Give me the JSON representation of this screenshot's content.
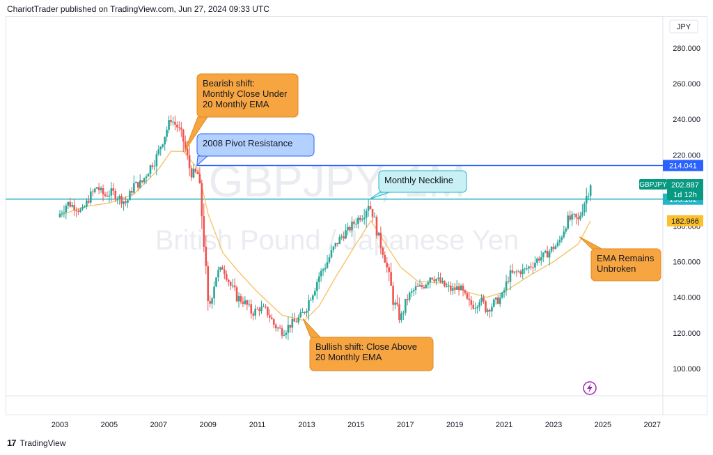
{
  "header": {
    "publisher_line": "ChariotTrader published on TradingView.com, Jun 27, 2024 09:33 UTC"
  },
  "footer": {
    "logo_text": "TradingView"
  },
  "colors": {
    "up": "#26a69a",
    "down": "#ef5350",
    "ema": "#f6c46b",
    "resistance": "#2962ff",
    "neckline": "#22b5c6",
    "callout_orange": "#f7a541",
    "callout_blue": "#b3d1ff",
    "callout_cyan": "#c8f0f5",
    "price_badge": "#089981",
    "ema_badge": "#fbc02d"
  },
  "chart_data": {
    "type": "candlestick",
    "symbol_watermark": "GBPJPY, 1M",
    "name_watermark": "British Pound / Japanese Yen",
    "currency_label": "JPY",
    "interval": "1M",
    "ylim": [
      88,
      295
    ],
    "xlim": [
      2001.5,
      2028.0
    ],
    "y_ticks": [
      "280.000",
      "260.000",
      "240.000",
      "220.000",
      "200.000",
      "180.000",
      "160.000",
      "140.000",
      "120.000",
      "100.000"
    ],
    "x_ticks": [
      "2003",
      "2005",
      "2007",
      "2009",
      "2011",
      "2013",
      "2015",
      "2017",
      "2019",
      "2021",
      "2023",
      "2025",
      "2027"
    ],
    "series": [
      {
        "name": "GBPJPY",
        "type": "candles",
        "points": [
          [
            2003.0,
            187
          ],
          [
            2003.3,
            193
          ],
          [
            2003.6,
            191
          ],
          [
            2003.9,
            188
          ],
          [
            2004.2,
            196
          ],
          [
            2004.5,
            202
          ],
          [
            2004.8,
            197
          ],
          [
            2005.1,
            199
          ],
          [
            2005.4,
            196
          ],
          [
            2005.7,
            193
          ],
          [
            2006.0,
            203
          ],
          [
            2006.3,
            204
          ],
          [
            2006.6,
            212
          ],
          [
            2006.9,
            218
          ],
          [
            2007.2,
            230
          ],
          [
            2007.5,
            240
          ],
          [
            2007.8,
            235
          ],
          [
            2008.0,
            228
          ],
          [
            2008.3,
            210
          ],
          [
            2008.6,
            209
          ],
          [
            2008.8,
            180
          ],
          [
            2009.0,
            131
          ],
          [
            2009.3,
            152
          ],
          [
            2009.6,
            157
          ],
          [
            2009.9,
            147
          ],
          [
            2010.2,
            140
          ],
          [
            2010.5,
            137
          ],
          [
            2010.8,
            131
          ],
          [
            2011.1,
            134
          ],
          [
            2011.4,
            132
          ],
          [
            2011.7,
            124
          ],
          [
            2012.0,
            121
          ],
          [
            2012.3,
            124
          ],
          [
            2012.6,
            127
          ],
          [
            2012.9,
            132
          ],
          [
            2013.2,
            142
          ],
          [
            2013.5,
            152
          ],
          [
            2013.8,
            159
          ],
          [
            2014.1,
            168
          ],
          [
            2014.4,
            174
          ],
          [
            2014.7,
            178
          ],
          [
            2015.0,
            183
          ],
          [
            2015.3,
            187
          ],
          [
            2015.5,
            193
          ],
          [
            2015.7,
            186
          ],
          [
            2015.9,
            175
          ],
          [
            2016.2,
            160
          ],
          [
            2016.5,
            139
          ],
          [
            2016.8,
            128
          ],
          [
            2017.1,
            140
          ],
          [
            2017.4,
            145
          ],
          [
            2017.7,
            146
          ],
          [
            2018.0,
            152
          ],
          [
            2018.3,
            150
          ],
          [
            2018.6,
            146
          ],
          [
            2018.9,
            144
          ],
          [
            2019.2,
            146
          ],
          [
            2019.5,
            137
          ],
          [
            2019.8,
            135
          ],
          [
            2020.0,
            140
          ],
          [
            2020.3,
            133
          ],
          [
            2020.6,
            137
          ],
          [
            2020.9,
            140
          ],
          [
            2021.2,
            152
          ],
          [
            2021.5,
            154
          ],
          [
            2021.8,
            155
          ],
          [
            2022.1,
            158
          ],
          [
            2022.4,
            162
          ],
          [
            2022.7,
            164
          ],
          [
            2022.9,
            167
          ],
          [
            2023.2,
            170
          ],
          [
            2023.5,
            182
          ],
          [
            2023.8,
            185
          ],
          [
            2024.0,
            183
          ],
          [
            2024.2,
            192
          ],
          [
            2024.5,
            202.9
          ]
        ]
      },
      {
        "name": "EMA 20",
        "type": "line",
        "points": [
          [
            2003.0,
            186
          ],
          [
            2004.0,
            191
          ],
          [
            2005.0,
            193
          ],
          [
            2006.0,
            198
          ],
          [
            2007.0,
            212
          ],
          [
            2007.5,
            222
          ],
          [
            2008.0,
            222
          ],
          [
            2008.6,
            212
          ],
          [
            2009.0,
            187
          ],
          [
            2009.6,
            165
          ],
          [
            2010.2,
            155
          ],
          [
            2011.0,
            143
          ],
          [
            2012.0,
            130
          ],
          [
            2012.9,
            127
          ],
          [
            2013.5,
            135
          ],
          [
            2014.2,
            152
          ],
          [
            2015.0,
            170
          ],
          [
            2015.6,
            183
          ],
          [
            2016.2,
            170
          ],
          [
            2016.8,
            157
          ],
          [
            2017.5,
            149
          ],
          [
            2018.5,
            148
          ],
          [
            2019.5,
            143
          ],
          [
            2020.3,
            140
          ],
          [
            2021.0,
            143
          ],
          [
            2022.0,
            152
          ],
          [
            2023.0,
            160
          ],
          [
            2024.0,
            170
          ],
          [
            2024.5,
            183
          ]
        ]
      }
    ],
    "levels": [
      {
        "name": "resistance",
        "value": 214.041,
        "label": "214.041"
      },
      {
        "name": "neckline",
        "value": 195.162,
        "label": "195.162"
      }
    ],
    "price_badge": {
      "symbol": "GBPJPY",
      "value": "202.887",
      "countdown": "1d 12h"
    },
    "ema_badge": {
      "value": "182.966"
    },
    "annotations": [
      {
        "id": "bearish",
        "lines": [
          "Bearish shift:",
          "Monthly Close Under",
          "20 Monthly EMA"
        ]
      },
      {
        "id": "pivot",
        "lines": [
          "2008 Pivot Resistance"
        ]
      },
      {
        "id": "neckline",
        "lines": [
          "Monthly Neckline"
        ]
      },
      {
        "id": "bullish",
        "lines": [
          "Bullish shift: Close Above",
          "20 Monthly EMA"
        ]
      },
      {
        "id": "ema",
        "lines": [
          "EMA Remains",
          "Unbroken"
        ]
      }
    ]
  }
}
